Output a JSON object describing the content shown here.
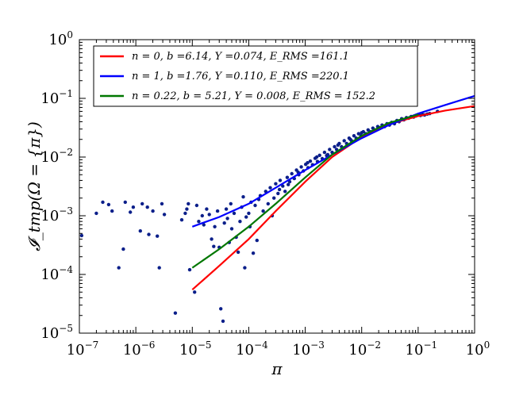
{
  "chart_data": {
    "type": "scatter",
    "title": "",
    "xlabel": "π",
    "ylabel": "𝓘_tmp(Ω = {π})",
    "x_scale": "log",
    "y_scale": "log",
    "xlim": [
      1e-07,
      1
    ],
    "ylim": [
      1e-05,
      1
    ],
    "grid": false,
    "legend_position": "top-left",
    "x_ticks": [
      {
        "base": "10",
        "exp": "−7"
      },
      {
        "base": "10",
        "exp": "−6"
      },
      {
        "base": "10",
        "exp": "−5"
      },
      {
        "base": "10",
        "exp": "−4"
      },
      {
        "base": "10",
        "exp": "−3"
      },
      {
        "base": "10",
        "exp": "−2"
      },
      {
        "base": "10",
        "exp": "−1"
      },
      {
        "base": "10",
        "exp": "0"
      }
    ],
    "y_ticks": [
      {
        "base": "10",
        "exp": "−5"
      },
      {
        "base": "10",
        "exp": "−4"
      },
      {
        "base": "10",
        "exp": "−3"
      },
      {
        "base": "10",
        "exp": "−2"
      },
      {
        "base": "10",
        "exp": "−1"
      },
      {
        "base": "10",
        "exp": "0"
      }
    ],
    "scatter": {
      "name": "data",
      "color": "#0b1f8a",
      "points": [
        [
          1.1e-07,
          0.00046
        ],
        [
          2e-07,
          0.0011
        ],
        [
          2.6e-07,
          0.0017
        ],
        [
          3.3e-07,
          0.00155
        ],
        [
          3.8e-07,
          0.0012
        ],
        [
          5e-07,
          0.00013
        ],
        [
          6e-07,
          0.00027
        ],
        [
          6.5e-07,
          0.0017
        ],
        [
          8e-07,
          0.00115
        ],
        [
          9e-07,
          0.0014
        ],
        [
          1.2e-06,
          0.00055
        ],
        [
          1.3e-06,
          0.0016
        ],
        [
          1.6e-06,
          0.0014
        ],
        [
          1.7e-06,
          0.00048
        ],
        [
          2e-06,
          0.0012
        ],
        [
          2.4e-06,
          0.00045
        ],
        [
          2.6e-06,
          0.00013
        ],
        [
          2.9e-06,
          0.0016
        ],
        [
          3.2e-06,
          0.00105
        ],
        [
          5e-06,
          2.2e-05
        ],
        [
          6.5e-06,
          0.00085
        ],
        [
          7.5e-06,
          0.0011
        ],
        [
          8e-06,
          0.0013
        ],
        [
          8.5e-06,
          0.0016
        ],
        [
          9e-06,
          0.00012
        ],
        [
          1.1e-05,
          5e-05
        ],
        [
          1.2e-05,
          0.0015
        ],
        [
          1.3e-05,
          0.0008
        ],
        [
          1.5e-05,
          0.001
        ],
        [
          1.6e-05,
          0.0007
        ],
        [
          1.8e-05,
          0.0013
        ],
        [
          2e-05,
          0.00105
        ],
        [
          2.2e-05,
          0.0004
        ],
        [
          2.4e-05,
          0.0003
        ],
        [
          2.5e-05,
          0.00065
        ],
        [
          2.8e-05,
          0.0012
        ],
        [
          3e-05,
          0.00029
        ],
        [
          3.2e-05,
          2.6e-05
        ],
        [
          3.5e-05,
          1.6e-05
        ],
        [
          3.7e-05,
          0.00075
        ],
        [
          4e-05,
          0.0013
        ],
        [
          4.2e-05,
          0.0009
        ],
        [
          4.5e-05,
          0.00035
        ],
        [
          4.8e-05,
          0.0016
        ],
        [
          5e-05,
          0.0006
        ],
        [
          5.5e-05,
          0.0011
        ],
        [
          6e-05,
          0.00043
        ],
        [
          6.5e-05,
          0.00024
        ],
        [
          7e-05,
          0.0008
        ],
        [
          7.5e-05,
          0.0014
        ],
        [
          8e-05,
          0.0021
        ],
        [
          8.5e-05,
          0.00013
        ],
        [
          9e-05,
          0.00095
        ],
        [
          0.0001,
          0.0011
        ],
        [
          0.000105,
          0.00065
        ],
        [
          0.00011,
          0.0017
        ],
        [
          0.00012,
          0.00023
        ],
        [
          0.00013,
          0.0015
        ],
        [
          0.00014,
          0.00038
        ],
        [
          0.00015,
          0.0019
        ],
        [
          0.00016,
          0.0022
        ],
        [
          0.00018,
          0.0012
        ],
        [
          0.0002,
          0.0026
        ],
        [
          0.00022,
          0.0016
        ],
        [
          0.00024,
          0.003
        ],
        [
          0.00026,
          0.001
        ],
        [
          0.00028,
          0.002
        ],
        [
          0.0003,
          0.0035
        ],
        [
          0.00033,
          0.0024
        ],
        [
          0.00036,
          0.004
        ],
        [
          0.0004,
          0.0032
        ],
        [
          0.00044,
          0.0026
        ],
        [
          0.00048,
          0.0045
        ],
        [
          0.00053,
          0.0038
        ],
        [
          0.00058,
          0.0052
        ],
        [
          0.00064,
          0.0043
        ],
        [
          0.0007,
          0.006
        ],
        [
          0.00077,
          0.005
        ],
        [
          0.00085,
          0.0068
        ],
        [
          0.00093,
          0.0058
        ],
        [
          0.00102,
          0.0075
        ],
        [
          0.00112,
          0.0066
        ],
        [
          0.00123,
          0.0085
        ],
        [
          0.00135,
          0.0074
        ],
        [
          0.0015,
          0.0095
        ],
        [
          0.00165,
          0.0084
        ],
        [
          0.0018,
          0.0107
        ],
        [
          0.002,
          0.0094
        ],
        [
          0.0022,
          0.012
        ],
        [
          0.0024,
          0.0106
        ],
        [
          0.0027,
          0.0135
        ],
        [
          0.003,
          0.012
        ],
        [
          0.0033,
          0.015
        ],
        [
          0.0036,
          0.0135
        ],
        [
          0.004,
          0.017
        ],
        [
          0.0044,
          0.015
        ],
        [
          0.0049,
          0.019
        ],
        [
          0.0054,
          0.017
        ],
        [
          0.006,
          0.021
        ],
        [
          0.0066,
          0.019
        ],
        [
          0.0073,
          0.023
        ],
        [
          0.008,
          0.021
        ],
        [
          0.0088,
          0.025
        ],
        [
          0.0097,
          0.023
        ],
        [
          0.0107,
          0.027
        ],
        [
          0.0118,
          0.025
        ],
        [
          0.013,
          0.029
        ],
        [
          0.0143,
          0.027
        ],
        [
          0.0158,
          0.031
        ],
        [
          0.0174,
          0.029
        ],
        [
          0.0192,
          0.033
        ],
        [
          0.021,
          0.031
        ],
        [
          0.023,
          0.035
        ],
        [
          0.0255,
          0.033
        ],
        [
          0.028,
          0.037
        ],
        [
          0.031,
          0.035
        ],
        [
          0.034,
          0.039
        ],
        [
          0.038,
          0.037
        ],
        [
          0.042,
          0.042
        ],
        [
          0.046,
          0.04
        ],
        [
          0.051,
          0.045
        ],
        [
          0.056,
          0.043
        ],
        [
          0.062,
          0.047
        ],
        [
          0.068,
          0.046
        ],
        [
          0.075,
          0.049
        ],
        [
          0.083,
          0.048
        ],
        [
          0.09,
          0.05
        ],
        [
          0.1,
          0.052
        ],
        [
          0.11,
          0.051
        ],
        [
          0.12,
          0.053
        ],
        [
          0.13,
          0.052
        ],
        [
          0.145,
          0.054
        ],
        [
          0.16,
          0.055
        ],
        [
          0.22,
          0.06
        ],
        [
          0.00035,
          0.0028
        ],
        [
          0.0005,
          0.0034
        ],
        [
          0.00075,
          0.0055
        ],
        [
          0.0011,
          0.008
        ],
        [
          0.0016,
          0.01
        ],
        [
          0.0025,
          0.011
        ],
        [
          0.0038,
          0.016
        ],
        [
          0.0063,
          0.02
        ],
        [
          0.01,
          0.026
        ],
        [
          0.02,
          0.032
        ]
      ]
    },
    "series": [
      {
        "name": "n = 0,  b =6.14,  Y =0.074,  E_RMS =161.1",
        "legend_label": "n = 0,  b =6.14,  Y =0.074,  E_RMS =161.1",
        "color": "#ff0000",
        "x": [
          1e-05,
          3e-05,
          0.0001,
          0.0003,
          0.001,
          0.003,
          0.01,
          0.03,
          0.1,
          0.3,
          1.0
        ],
        "y": [
          5.5e-05,
          0.00014,
          0.0004,
          0.0012,
          0.0038,
          0.01,
          0.022,
          0.036,
          0.05,
          0.062,
          0.074
        ]
      },
      {
        "name": "n = 1,  b =1.76,  Y =0.110,  E_RMS =220.1",
        "legend_label": "n = 1,  b =1.76,  Y =0.110,  E_RMS =220.1",
        "color": "#0000ff",
        "x": [
          1e-05,
          3e-05,
          0.0001,
          0.0003,
          0.001,
          0.003,
          0.01,
          0.03,
          0.1,
          0.3,
          1.0
        ],
        "y": [
          0.00065,
          0.00095,
          0.0016,
          0.003,
          0.006,
          0.011,
          0.021,
          0.035,
          0.055,
          0.077,
          0.11
        ]
      },
      {
        "name": "n = 0.22,  b = 5.21,  Y = 0.008,  E_RMS = 152.2",
        "legend_label": "n = 0.22,  b = 5.21,  Y = 0.008,  E_RMS = 152.2",
        "color": "#007700",
        "x": [
          1e-05,
          3e-05,
          0.0001,
          0.0003,
          0.001,
          0.003,
          0.01,
          0.03,
          0.1
        ],
        "y": [
          0.00013,
          0.00027,
          0.00065,
          0.0016,
          0.0045,
          0.011,
          0.023,
          0.038,
          0.053
        ]
      }
    ]
  }
}
